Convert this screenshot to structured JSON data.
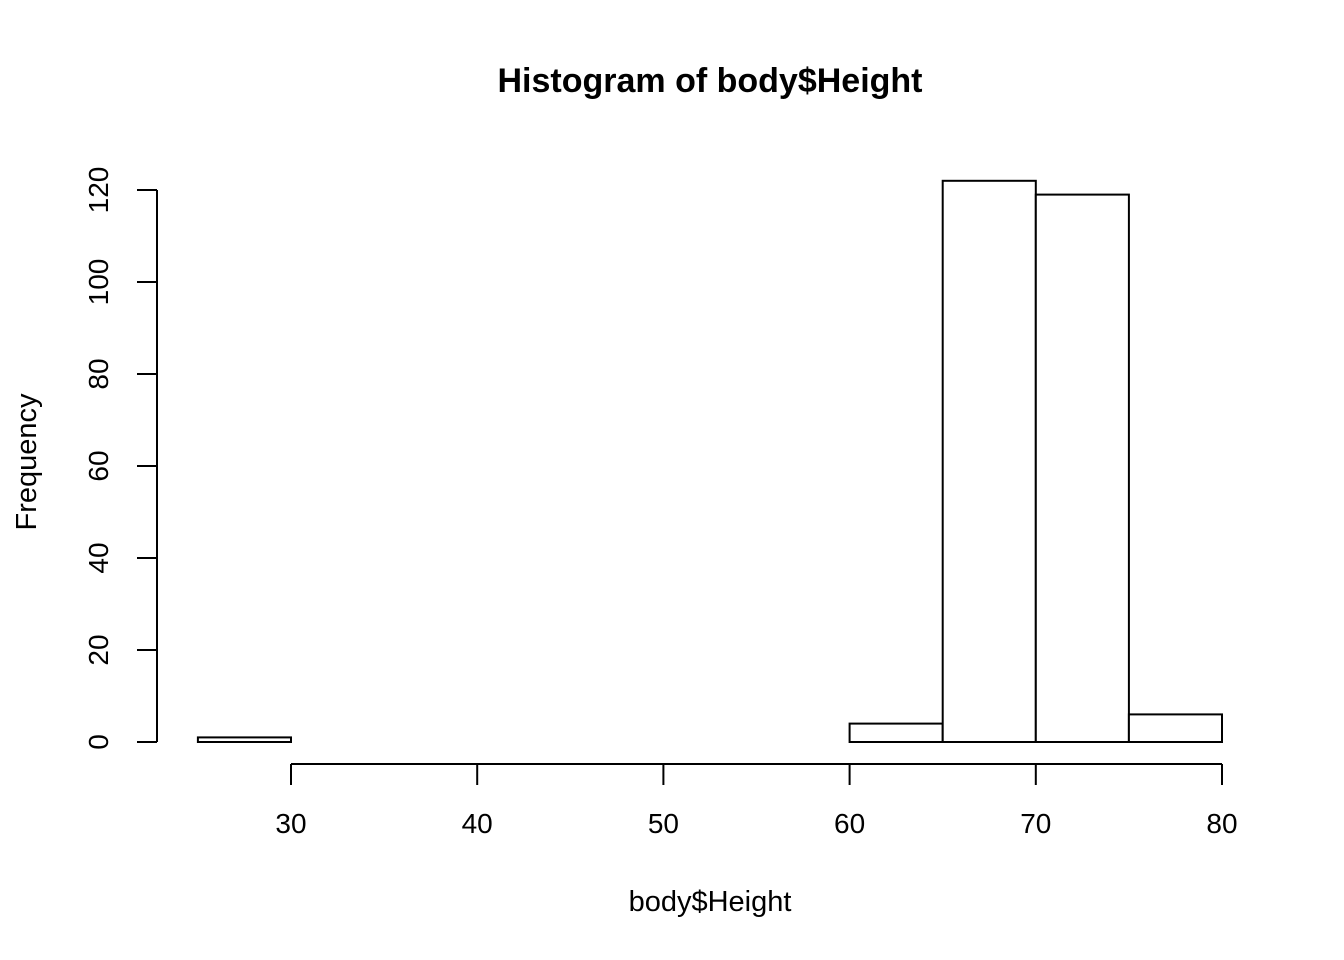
{
  "chart_data": {
    "type": "bar",
    "title": "Histogram of body$Height",
    "xlabel": "body$Height",
    "ylabel": "Frequency",
    "bins": [
      {
        "start": 25,
        "end": 30,
        "count": 1
      },
      {
        "start": 30,
        "end": 35,
        "count": 0
      },
      {
        "start": 35,
        "end": 40,
        "count": 0
      },
      {
        "start": 40,
        "end": 45,
        "count": 0
      },
      {
        "start": 45,
        "end": 50,
        "count": 0
      },
      {
        "start": 50,
        "end": 55,
        "count": 0
      },
      {
        "start": 55,
        "end": 60,
        "count": 0
      },
      {
        "start": 60,
        "end": 65,
        "count": 4
      },
      {
        "start": 65,
        "end": 70,
        "count": 122
      },
      {
        "start": 70,
        "end": 75,
        "count": 119
      },
      {
        "start": 75,
        "end": 80,
        "count": 6
      }
    ],
    "xlim": [
      25,
      80
    ],
    "ylim": [
      0,
      122
    ],
    "x_ticks": [
      30,
      40,
      50,
      60,
      70,
      80
    ],
    "y_ticks": [
      0,
      20,
      40,
      60,
      80,
      100,
      120
    ],
    "grid": false,
    "bar_fill": "#ffffff",
    "bar_stroke": "#000000"
  }
}
